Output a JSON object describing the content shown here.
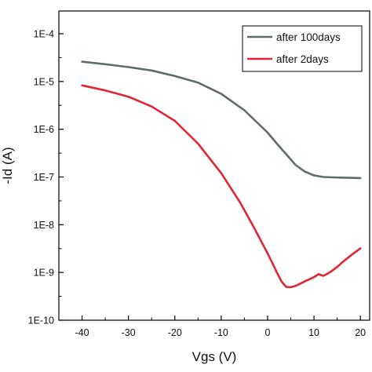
{
  "chart_data": {
    "type": "line",
    "xlabel": "Vgs (V)",
    "ylabel": "-Id (A)",
    "yscale": "log",
    "xlim": [
      -45,
      22
    ],
    "ylim": [
      1e-10,
      0.0003
    ],
    "xticks": [
      -40,
      -30,
      -20,
      -10,
      0,
      10,
      20
    ],
    "xtick_labels": [
      "-40",
      "-30",
      "-20",
      "-10",
      "0",
      "10",
      "20"
    ],
    "yticks": [
      1e-10,
      1e-09,
      1e-08,
      1e-07,
      1e-06,
      1e-05,
      0.0001
    ],
    "ytick_labels": [
      "1E-10",
      "1E-9",
      "1E-8",
      "1E-7",
      "1E-6",
      "1E-5",
      "1E-4"
    ],
    "legend_position": "top-right",
    "series": [
      {
        "name": "after 100days",
        "color": "#5f6b6b",
        "x": [
          -40,
          -35,
          -30,
          -25,
          -20,
          -15,
          -10,
          -5,
          0,
          2,
          4,
          6,
          8,
          10,
          12,
          14,
          16,
          18,
          20
        ],
        "y": [
          2.6e-05,
          2.3e-05,
          2e-05,
          1.7e-05,
          1.3e-05,
          9.5e-06,
          5.5e-06,
          2.5e-06,
          8.5e-07,
          5e-07,
          3e-07,
          1.8e-07,
          1.3e-07,
          1.08e-07,
          1e-07,
          9.8e-08,
          9.7e-08,
          9.6e-08,
          9.5e-08
        ]
      },
      {
        "name": "after 2days",
        "color": "#e02535",
        "x": [
          -40,
          -35,
          -30,
          -25,
          -20,
          -15,
          -10,
          -6,
          -3,
          0,
          1,
          2,
          3,
          4,
          5,
          6,
          8,
          10,
          11,
          12,
          13,
          14,
          15,
          16,
          18,
          20
        ],
        "y": [
          8.3e-06,
          6.5e-06,
          4.8e-06,
          3e-06,
          1.5e-06,
          5e-07,
          1.2e-07,
          3e-08,
          9e-09,
          2.5e-09,
          1.6e-09,
          1e-09,
          6.5e-10,
          5e-10,
          4.9e-10,
          5.2e-10,
          6.5e-10,
          8e-10,
          9.2e-10,
          8.5e-10,
          9.5e-10,
          1.1e-09,
          1.3e-09,
          1.6e-09,
          2.3e-09,
          3.2e-09
        ]
      }
    ]
  }
}
